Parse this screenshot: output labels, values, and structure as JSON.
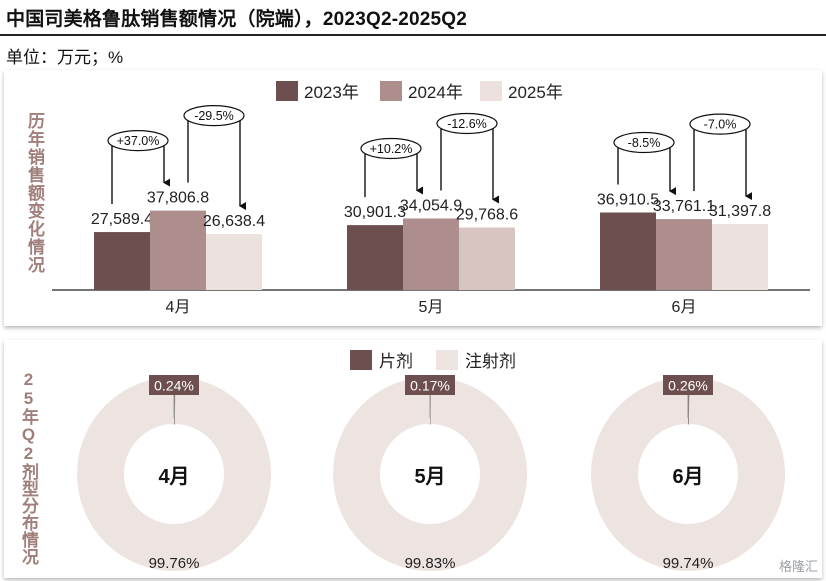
{
  "title": "中国司美格鲁肽销售额情况（院端），2023Q2-2025Q2",
  "unit": "单位：万元；%",
  "colors": {
    "c2023": "#6e4f4f",
    "c2024": "#ad8e8c",
    "c2025": "#ece1de",
    "c2025_may": "#d6c5c1",
    "tablet": "#6e4f4f",
    "injection": "#ede4e1"
  },
  "watermark": "格隆汇",
  "chart_data": [
    {
      "type": "bar",
      "side_label": "历年销售额变化情况",
      "categories": [
        "4月",
        "5月",
        "6月"
      ],
      "series": [
        {
          "name": "2023年",
          "values": [
            27589.4,
            30901.3,
            36910.5
          ],
          "labels": [
            "27,589.4",
            "30,901.3",
            "36,910.5"
          ]
        },
        {
          "name": "2024年",
          "values": [
            37806.8,
            34054.9,
            33761.1
          ],
          "labels": [
            "37,806.8",
            "34,054.9",
            "33,761.1"
          ]
        },
        {
          "name": "2025年",
          "values": [
            26638.4,
            29768.6,
            31397.8
          ],
          "labels": [
            "26,638.4",
            "29,768.6",
            "31,397.8"
          ]
        }
      ],
      "annotations": [
        {
          "category": "4月",
          "from": "2023年",
          "to": "2024年",
          "text": "+37.0%"
        },
        {
          "category": "4月",
          "from": "2024年",
          "to": "2025年",
          "text": "-29.5%"
        },
        {
          "category": "5月",
          "from": "2023年",
          "to": "2024年",
          "text": "+10.2%"
        },
        {
          "category": "5月",
          "from": "2024年",
          "to": "2025年",
          "text": "-12.6%"
        },
        {
          "category": "6月",
          "from": "2023年",
          "to": "2024年",
          "text": "-8.5%"
        },
        {
          "category": "6月",
          "from": "2024年",
          "to": "2025年",
          "text": "-7.0%"
        }
      ],
      "legend": "top-center",
      "grid": false
    },
    {
      "type": "pie",
      "side_label": "25年Q2剂型分布情况",
      "legend": [
        "片剂",
        "注射剂"
      ],
      "donuts": [
        {
          "center_label": "4月",
          "slices": [
            {
              "name": "片剂",
              "value": 0.24,
              "label": "0.24%"
            },
            {
              "name": "注射剂",
              "value": 99.76,
              "label": "99.76%"
            }
          ]
        },
        {
          "center_label": "5月",
          "slices": [
            {
              "name": "片剂",
              "value": 0.17,
              "label": "0.17%"
            },
            {
              "name": "注射剂",
              "value": 99.83,
              "label": "99.83%"
            }
          ]
        },
        {
          "center_label": "6月",
          "slices": [
            {
              "name": "片剂",
              "value": 0.26,
              "label": "0.26%"
            },
            {
              "name": "注射剂",
              "value": 99.74,
              "label": "99.74%"
            }
          ]
        }
      ]
    }
  ]
}
